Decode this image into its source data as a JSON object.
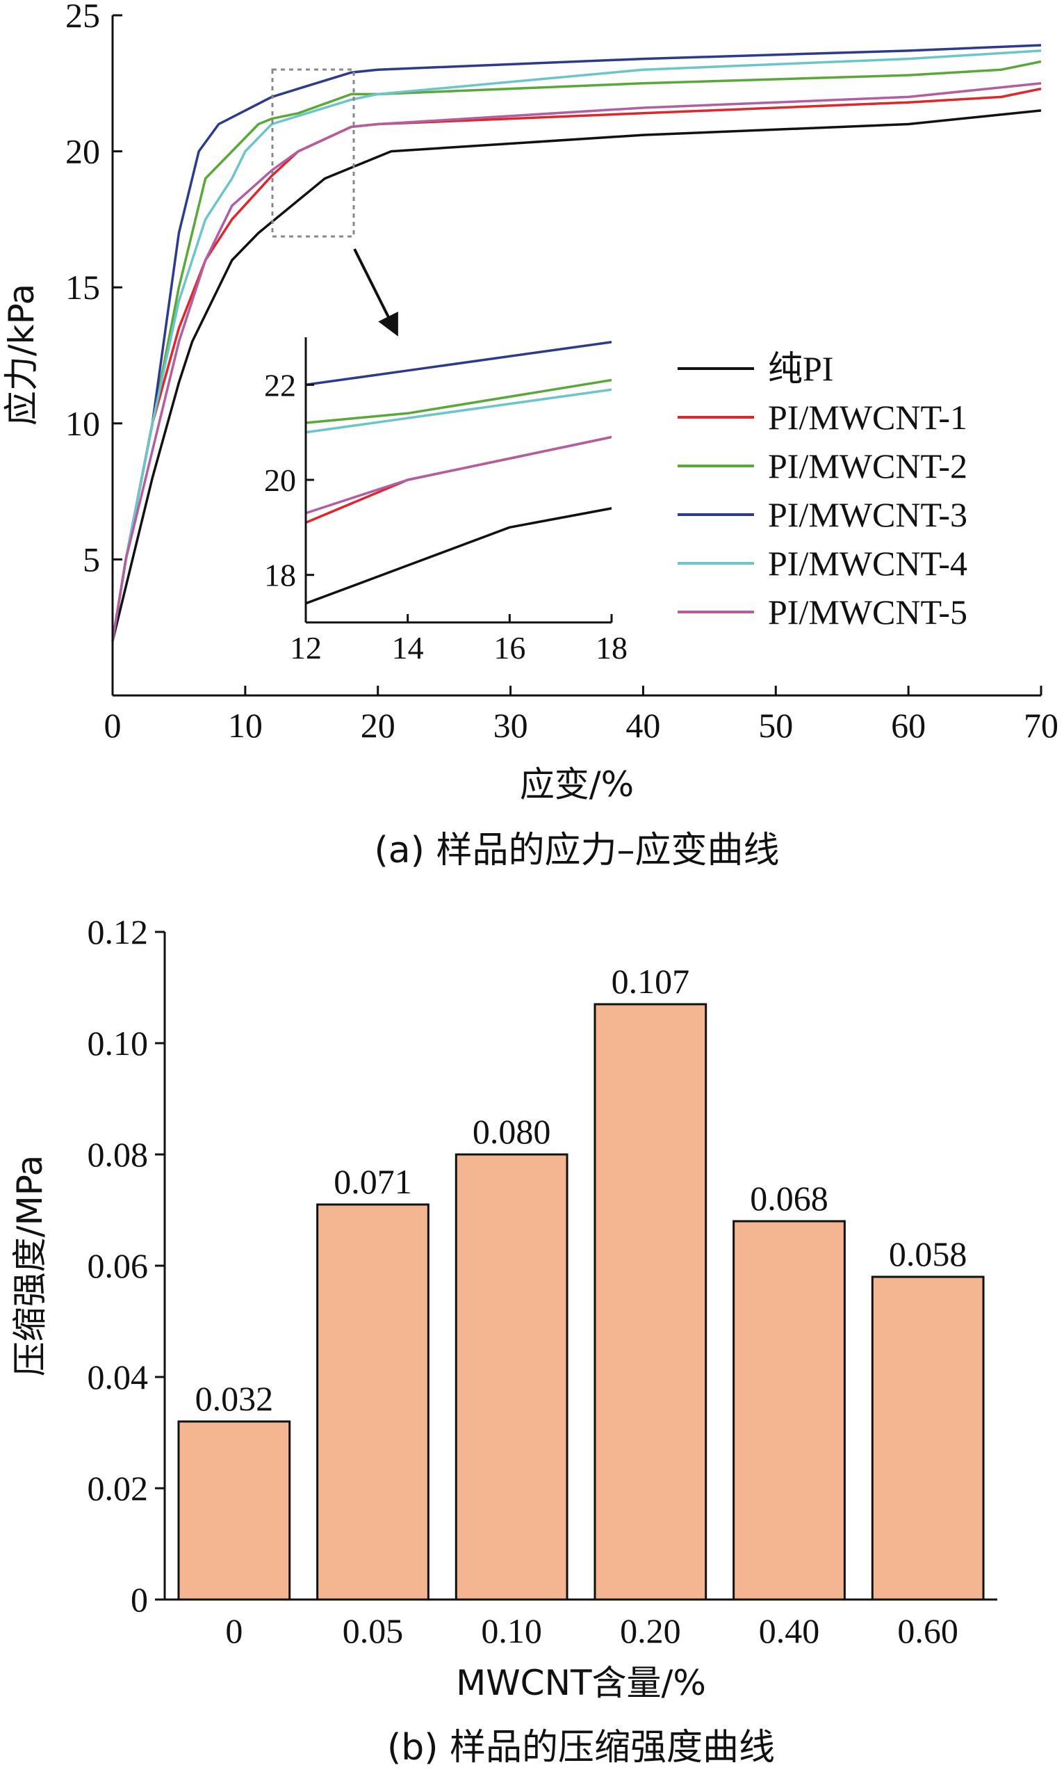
{
  "chart_data": [
    {
      "type": "line",
      "caption": "(a) 样品的应力–应变曲线",
      "xlabel": "应变/%",
      "ylabel": "应力/kPa",
      "xlim": [
        0,
        70
      ],
      "ylim": [
        0,
        25
      ],
      "xticks": [
        0,
        10,
        20,
        30,
        40,
        50,
        60,
        70
      ],
      "yticks": [
        5,
        10,
        15,
        20,
        25
      ],
      "legend_position": "right-middle",
      "series": [
        {
          "name": "纯PI",
          "color": "#111111",
          "x": [
            0,
            1,
            3,
            5,
            6,
            9,
            11,
            14,
            16,
            19,
            21,
            40,
            60,
            70
          ],
          "y": [
            2,
            4,
            8,
            11.5,
            13,
            16,
            17,
            18.2,
            19,
            19.6,
            20,
            20.6,
            21,
            21.5
          ]
        },
        {
          "name": "PI/MWCNT-1",
          "color": "#e0262a",
          "x": [
            0,
            1,
            3,
            5,
            7,
            9,
            12,
            14,
            18,
            20,
            40,
            60,
            67,
            70
          ],
          "y": [
            2,
            5,
            10,
            13.5,
            16,
            17.5,
            19.1,
            20,
            20.9,
            21,
            21.4,
            21.8,
            22,
            22.3
          ]
        },
        {
          "name": "PI/MWCNT-2",
          "color": "#5aa83a",
          "x": [
            0,
            1,
            3,
            5,
            7,
            9,
            11,
            12,
            14,
            18,
            20,
            40,
            60,
            67,
            70
          ],
          "y": [
            2,
            5,
            10,
            15,
            19,
            20,
            21,
            21.2,
            21.4,
            22.1,
            22.1,
            22.5,
            22.8,
            23,
            23.3
          ]
        },
        {
          "name": "PI/MWCNT-3",
          "color": "#2e3a8c",
          "x": [
            0,
            1,
            3,
            5,
            6.5,
            8,
            10,
            12,
            14,
            18,
            20,
            40,
            60,
            70
          ],
          "y": [
            2,
            5,
            10,
            17,
            20,
            21,
            21.5,
            22,
            22.3,
            22.9,
            23,
            23.4,
            23.7,
            23.9
          ]
        },
        {
          "name": "PI/MWCNT-4",
          "color": "#6cc5c8",
          "x": [
            0,
            1,
            3,
            5,
            7,
            9,
            10,
            12,
            14,
            18,
            20,
            40,
            60,
            70
          ],
          "y": [
            2,
            5,
            10,
            14.5,
            17.5,
            19,
            20,
            21,
            21.3,
            21.9,
            22.1,
            23,
            23.4,
            23.7
          ]
        },
        {
          "name": "PI/MWCNT-5",
          "color": "#b35ea0",
          "x": [
            0,
            1,
            3,
            5,
            7,
            9,
            12,
            14,
            18,
            20,
            40,
            60,
            70
          ],
          "y": [
            2,
            5,
            9,
            13,
            16,
            18,
            19.3,
            20,
            20.9,
            21,
            21.6,
            22,
            22.5
          ]
        }
      ],
      "inset": {
        "xlim": [
          12,
          18
        ],
        "ylim": [
          17,
          23
        ],
        "xticks": [
          12,
          14,
          16,
          18
        ],
        "yticks": [
          18,
          20,
          22
        ]
      }
    },
    {
      "type": "bar",
      "caption": "(b) 样品的压缩强度曲线",
      "xlabel": "MWCNT含量/%",
      "ylabel": "压缩强度/MPa",
      "ylim": [
        0,
        0.12
      ],
      "yticks": [
        "0",
        "0.02",
        "0.04",
        "0.06",
        "0.08",
        "0.10",
        "0.12"
      ],
      "categories": [
        "0",
        "0.05",
        "0.10",
        "0.20",
        "0.40",
        "0.60"
      ],
      "values": [
        0.032,
        0.071,
        0.08,
        0.107,
        0.068,
        0.058
      ],
      "data_labels": [
        "0.032",
        "0.071",
        "0.080",
        "0.107",
        "0.068",
        "0.058"
      ],
      "bar_color": "#f4b690"
    }
  ]
}
